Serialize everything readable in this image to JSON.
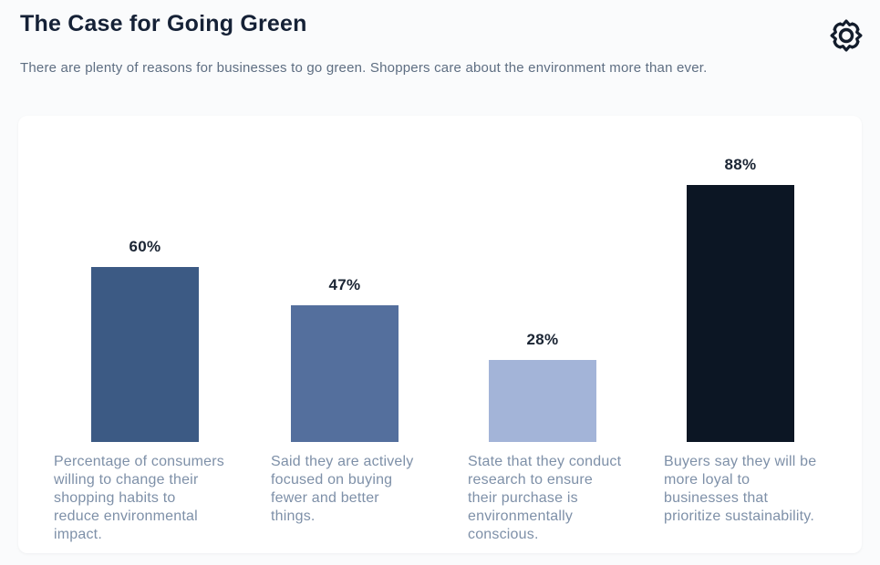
{
  "header": {
    "title": "The Case for Going Green",
    "subtitle": "There are plenty of reasons for businesses to go green. Shoppers care about the environment more than ever.",
    "logo_icon": "ring-braces-logo-icon"
  },
  "colors": {
    "page_bg": "#fafbfc",
    "card_bg": "#ffffff",
    "title_text": "#152136",
    "subtitle_text": "#5e6e82",
    "value_label_text": "#1a2433",
    "caption_text": "#7e90a8",
    "logo": "#131d2c"
  },
  "chart_data": {
    "type": "bar",
    "title": "The Case for Going Green",
    "unit": "%",
    "ylim": [
      0,
      100
    ],
    "grid": false,
    "legend": false,
    "value_label_position": "above bars",
    "values": [
      60,
      47,
      28,
      88
    ],
    "labels": [
      "60%",
      "47%",
      "28%",
      "88%"
    ],
    "bar_colors": [
      "#3c5a84",
      "#546f9d",
      "#a3b4d8",
      "#0c1624"
    ],
    "categories": [
      "Percentage of consumers willing to change their shopping habits to reduce environmental impact.",
      "Said they are actively focused on buying fewer and better things.",
      "State that they conduct research to ensure their purchase is environmentally conscious.",
      "Buyers say they will be more loyal to businesses that prioritize sustainability."
    ],
    "caption_lines": [
      [
        "Percentage of consumers",
        "willing to change their",
        "shopping habits to",
        "reduce environmental",
        "impact."
      ],
      [
        "Said they are actively",
        "focused on buying",
        "fewer and better",
        "things."
      ],
      [
        "State that they conduct",
        "research to ensure",
        "their purchase is",
        "environmentally",
        "conscious."
      ],
      [
        "Buyers say they will be",
        "more loyal to",
        "businesses that",
        "prioritize sustainability."
      ]
    ]
  }
}
